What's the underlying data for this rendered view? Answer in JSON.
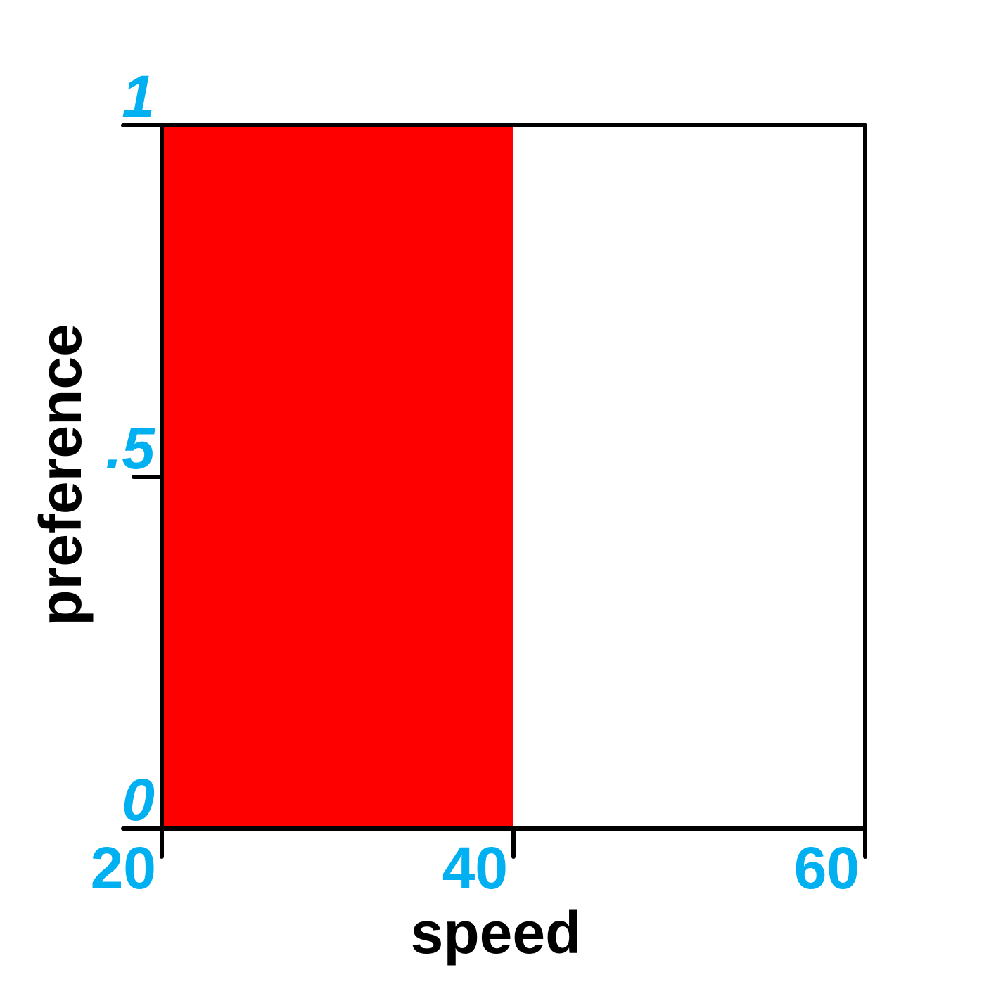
{
  "chart_data": {
    "type": "area",
    "title": "",
    "xlabel": "speed",
    "ylabel": "preference",
    "xlim": [
      20,
      60
    ],
    "ylim": [
      0,
      1
    ],
    "grid": false,
    "series": [
      {
        "name": "preference",
        "x": [
          20,
          40,
          40,
          60
        ],
        "y": [
          1,
          1,
          0,
          0
        ],
        "color": "#ff0000"
      }
    ],
    "x_ticks": [
      {
        "value": 20,
        "label": "20"
      },
      {
        "value": 40,
        "label": "40"
      },
      {
        "value": 60,
        "label": "60"
      }
    ],
    "y_ticks": [
      {
        "value": 0,
        "label": "0"
      },
      {
        "value": 0.5,
        "label": ".5"
      },
      {
        "value": 1,
        "label": "1"
      }
    ],
    "colors": {
      "fill": "#ff0000",
      "tick_label": "#00b0f0",
      "axis": "#000000",
      "axis_title": "#000000"
    }
  }
}
